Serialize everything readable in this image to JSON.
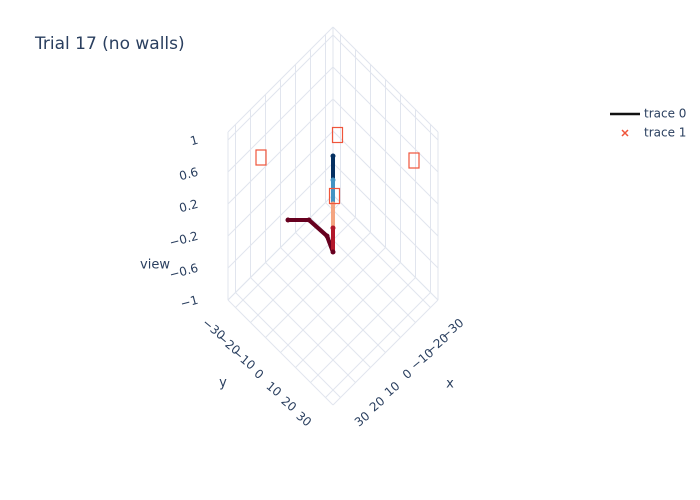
{
  "chart_data": {
    "type": "scatter3d",
    "title": "Trial 17 (no walls)",
    "x_title": "x",
    "y_title": "y",
    "z_title": "view",
    "xlim": [
      -35,
      35
    ],
    "ylim": [
      -35,
      35
    ],
    "zlim": [
      -1,
      1.1
    ],
    "xticks": [
      {
        "value": -30,
        "label": "−30"
      },
      {
        "value": -20,
        "label": "−20"
      },
      {
        "value": -10,
        "label": "−10"
      },
      0,
      10,
      20,
      30
    ],
    "yticks": [
      {
        "value": -30,
        "label": "−30"
      },
      {
        "value": -20,
        "label": "−20"
      },
      {
        "value": -10,
        "label": "−10"
      },
      0,
      10,
      20,
      30
    ],
    "zticks": [
      {
        "value": -1,
        "label": "−1"
      },
      {
        "value": -0.6,
        "label": "−0.6"
      },
      {
        "value": -0.2,
        "label": "−0.2"
      },
      0.2,
      0.6,
      1
    ],
    "grid": true,
    "legend_position": "top-right",
    "series": [
      {
        "name": "trace 0",
        "mode": "lines+markers",
        "color": "#111111",
        "x": [
          15,
          8,
          2,
          0,
          0,
          0,
          0,
          0
        ],
        "y": [
          -15,
          -8,
          -2,
          0,
          0,
          0,
          0,
          0
        ],
        "z": [
          0,
          0,
          -0.2,
          -0.4,
          -0.1,
          0.2,
          0.5,
          0.8
        ],
        "colors": [
          "#67001f",
          "#67001f",
          "#67001f",
          "#67001f",
          "#b2182b",
          "#f4a582",
          "#4393c3",
          "#053061"
        ]
      },
      {
        "name": "trace 1",
        "mode": "markers",
        "color": "#ef553b",
        "x": [
          30,
          -3,
          -20,
          5
        ],
        "y": [
          -18,
          0,
          34,
          6
        ],
        "z": [
          1,
          1,
          1,
          0.5
        ]
      }
    ]
  }
}
